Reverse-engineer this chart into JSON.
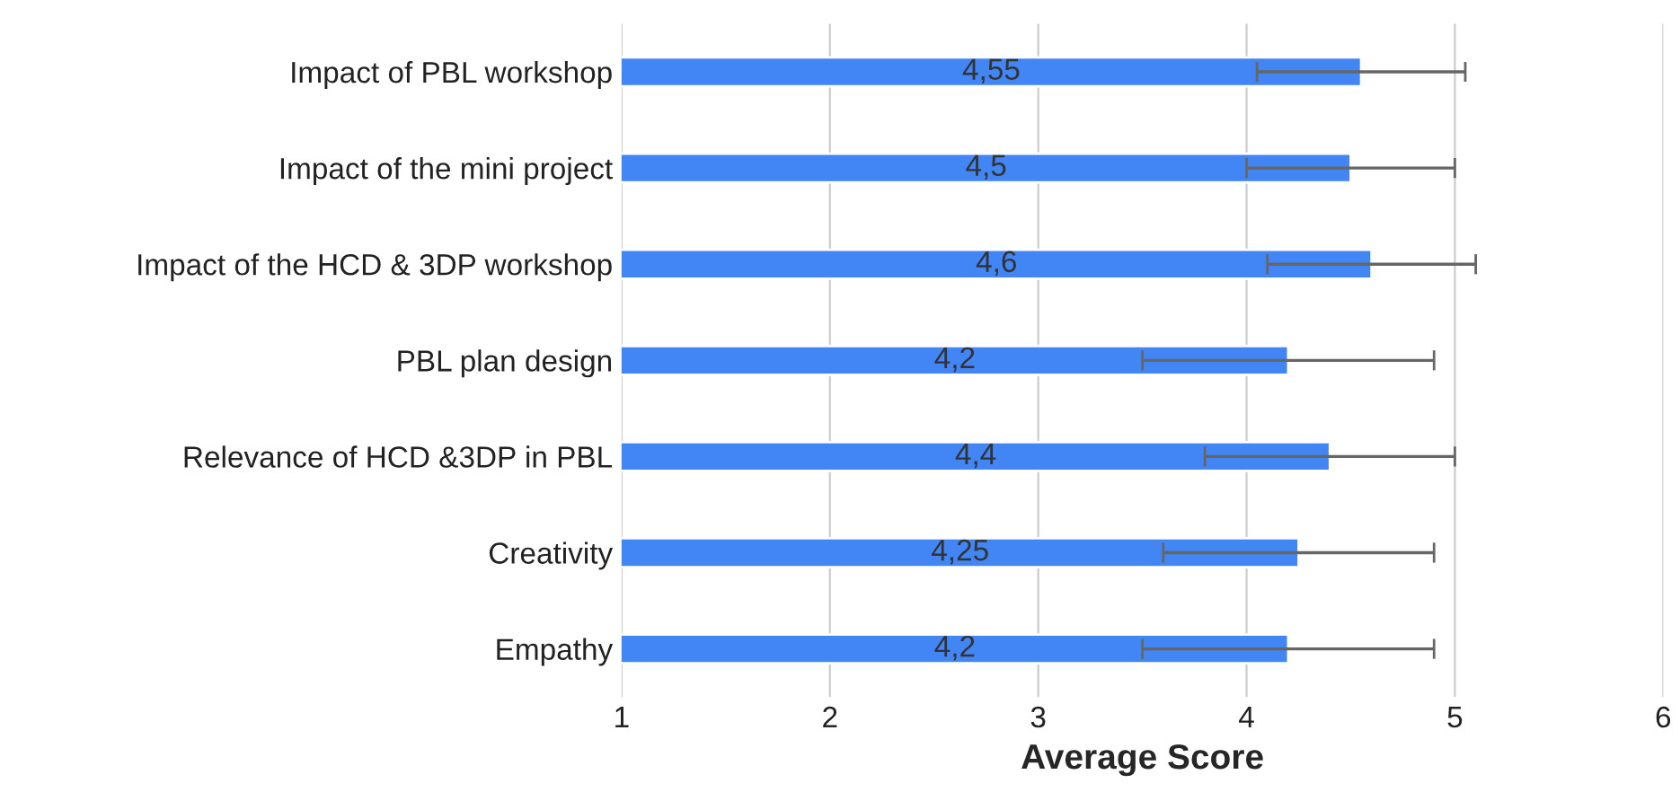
{
  "chart_data": {
    "type": "bar",
    "orientation": "horizontal",
    "xlabel": "Average Score",
    "categories": [
      "Impact of PBL workshop",
      "Impact of the mini project",
      "Impact of the HCD & 3DP workshop",
      "PBL plan design",
      "Relevance of HCD &3DP in PBL",
      "Creativity",
      "Empathy"
    ],
    "values": [
      4.55,
      4.5,
      4.6,
      4.2,
      4.4,
      4.25,
      4.2
    ],
    "errors": [
      0.5,
      0.5,
      0.5,
      0.7,
      0.6,
      0.65,
      0.7
    ],
    "value_labels": [
      "4,55",
      "4,5",
      "4,6",
      "4,2",
      "4,4",
      "4,25",
      "4,2"
    ],
    "color": "#4285f4",
    "xlim": [
      1,
      6
    ],
    "xticks": [
      1,
      2,
      3,
      4,
      5,
      6
    ],
    "grid": "x",
    "legend": false
  }
}
